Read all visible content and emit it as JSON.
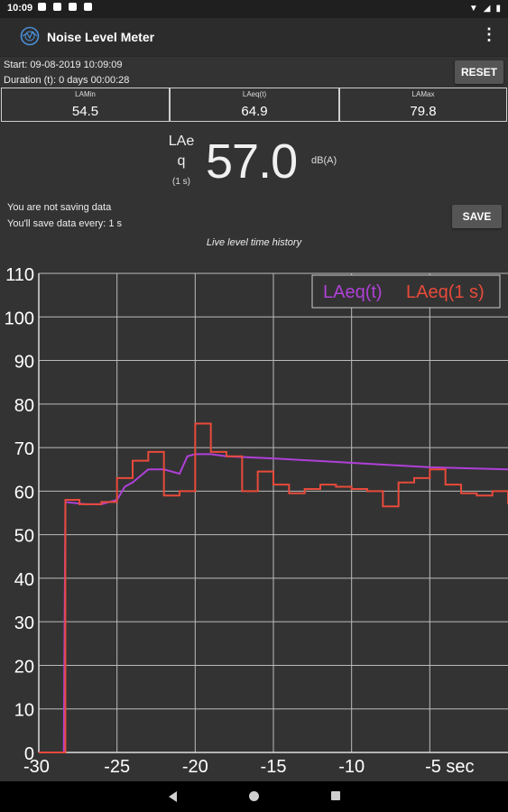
{
  "status_bar": {
    "time": "10:09"
  },
  "app": {
    "title": "Noise Level Meter"
  },
  "info": {
    "start": "Start: 09-08-2019 10:09:09",
    "duration": "Duration (t): 0 days 00:00:28",
    "reset_label": "RESET"
  },
  "stats": [
    {
      "label": "LAMin",
      "value": "54.5"
    },
    {
      "label": "LAeq(t)",
      "value": "64.9"
    },
    {
      "label": "LAMax",
      "value": "79.8"
    }
  ],
  "level": {
    "label_line1": "LAe",
    "label_line2": "q",
    "label_line3": "(1 s)",
    "value": "57.0",
    "unit": "dB(A)"
  },
  "saving": {
    "line1": "You are not saving data",
    "line2": "You'll save data every: 1 s",
    "save_label": "SAVE"
  },
  "history_title": "Live level time history",
  "colors": {
    "background": "#333333",
    "laeq_t": "#b040d8",
    "laeq_1s": "#e84a3a",
    "grid": "#bbbbbb"
  },
  "chart_data": {
    "type": "line",
    "x_unit": "sec",
    "xlim": [
      -30,
      0
    ],
    "ylim": [
      0,
      110
    ],
    "x_ticks": [
      "-30",
      "-25",
      "-20",
      "-15",
      "-10",
      "-5 sec"
    ],
    "y_ticks": [
      "0",
      "10",
      "20",
      "30",
      "40",
      "50",
      "60",
      "70",
      "80",
      "90",
      "100",
      "110"
    ],
    "grid": true,
    "legend_position": "top-right",
    "series": [
      {
        "name": "LAeq(t)",
        "color": "#b040d8",
        "x": [
          -30,
          -28.4,
          -28.3,
          -27,
          -26,
          -25,
          -24.5,
          -24,
          -23,
          -22,
          -21,
          -20.5,
          -20,
          -19,
          -18,
          -15,
          -10,
          -5,
          0
        ],
        "y": [
          0,
          0,
          57.5,
          57,
          57,
          58,
          61,
          62,
          65,
          65,
          64,
          68,
          68.5,
          68.5,
          68,
          67.5,
          66.5,
          65.5,
          65
        ]
      },
      {
        "name": "LAeq(1 s)",
        "color": "#e84a3a",
        "x": [
          -30,
          -29,
          -28.4,
          -28.3,
          -27.4,
          -27,
          -26,
          -25,
          -24,
          -23,
          -22,
          -21,
          -20,
          -19,
          -18,
          -17,
          -16,
          -15,
          -14,
          -13,
          -12,
          -11,
          -10,
          -9,
          -8,
          -7,
          -6,
          -5,
          -4,
          -3,
          -2,
          -1,
          0
        ],
        "y": [
          0,
          0,
          0,
          58,
          57,
          57,
          57.5,
          63,
          67,
          69,
          59,
          60,
          75.5,
          69,
          68,
          60,
          64.5,
          61.5,
          59.5,
          60.5,
          61.5,
          61,
          60.5,
          60,
          56.5,
          62,
          63,
          65,
          61.5,
          59.5,
          59,
          60,
          57
        ]
      }
    ]
  }
}
